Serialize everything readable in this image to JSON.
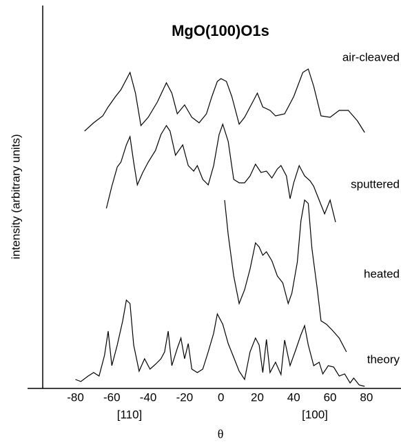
{
  "chart_data": {
    "type": "line",
    "title": "MgO(100)O1s",
    "x_label": "θ",
    "y_label": "intensity (arbitrary units)",
    "annotations": [
      "[110]",
      "[100]"
    ],
    "xlim": [
      -98,
      99
    ],
    "ylim": [
      0,
      111
    ],
    "xticks": [
      -80,
      -60,
      -40,
      -20,
      0,
      20,
      40,
      60,
      80
    ],
    "color": "#000000",
    "series": [
      {
        "name": "air-cleaved",
        "x": [
          -75,
          -70,
          -65,
          -62,
          -58,
          -55,
          -50,
          -47,
          -44,
          -40,
          -35,
          -30,
          -27,
          -24,
          -20,
          -16,
          -12,
          -8,
          -5,
          -2,
          0,
          3,
          6,
          10,
          13,
          17,
          20,
          23,
          27,
          30,
          35,
          40,
          45,
          48,
          51,
          55,
          60,
          65,
          70,
          75,
          79
        ],
        "values": [
          74.6,
          77,
          79,
          81.6,
          84.6,
          86.6,
          91.6,
          85.6,
          76.2,
          78.6,
          83,
          88.6,
          85.6,
          79.6,
          82.2,
          78.6,
          77,
          79.6,
          84.6,
          89,
          89.8,
          89,
          84.6,
          76.6,
          78.6,
          82.6,
          85.6,
          81.6,
          80.6,
          79,
          79.6,
          84.6,
          91.6,
          92.6,
          87.6,
          79,
          78.6,
          80.6,
          80.6,
          77.6,
          74.2
        ]
      },
      {
        "name": "sputtered",
        "x": [
          -63,
          -60,
          -57,
          -55,
          -52,
          -50,
          -48,
          -46,
          -43,
          -40,
          -36,
          -33,
          -30,
          -28,
          -25,
          -21,
          -18,
          -15,
          -13,
          -10,
          -7,
          -4,
          -1,
          1,
          4,
          7,
          10,
          13,
          16,
          19,
          22,
          25,
          28,
          31,
          33,
          36,
          38,
          40,
          43,
          46,
          49,
          51,
          54,
          57,
          60,
          63
        ],
        "values": [
          52.2,
          58.6,
          64.2,
          65.6,
          70.6,
          73,
          65.6,
          59,
          62.6,
          65.6,
          69,
          73.6,
          76.2,
          74.6,
          67.6,
          70.6,
          64.6,
          63,
          64.6,
          60.6,
          59,
          64.6,
          73.6,
          76.6,
          71.6,
          60.6,
          59.6,
          59.6,
          61.6,
          65,
          62.6,
          63,
          61,
          63.6,
          64.6,
          61.6,
          55,
          59.6,
          64.6,
          61.6,
          60.2,
          58.6,
          54.6,
          50.6,
          54.6,
          48.2
        ]
      },
      {
        "name": "heated",
        "x": [
          2,
          4,
          7,
          10,
          13,
          16,
          19,
          21,
          23,
          25,
          28,
          31,
          34,
          37,
          39,
          42,
          44,
          46,
          48,
          50,
          53,
          55,
          58,
          61,
          65,
          69
        ],
        "values": [
          54.6,
          44.6,
          32.6,
          24.6,
          28.6,
          34.6,
          42.2,
          41,
          38.6,
          39.6,
          37,
          32.6,
          30.6,
          24.6,
          27.6,
          36.6,
          48.6,
          54.6,
          53.6,
          40.6,
          28.6,
          19.6,
          18.6,
          17,
          14.6,
          10.6
        ]
      },
      {
        "name": "theory",
        "x": [
          -80,
          -77,
          -73,
          -70,
          -67,
          -64,
          -62,
          -60,
          -57,
          -54,
          -52,
          -50,
          -48,
          -45,
          -42,
          -39,
          -36,
          -33,
          -31,
          -29,
          -27,
          -24,
          -22,
          -20,
          -18,
          -16,
          -13,
          -10,
          -7,
          -4,
          -2,
          1,
          4,
          7,
          10,
          13,
          16,
          19,
          21,
          23,
          25,
          27,
          30,
          33,
          35,
          38,
          41,
          44,
          46,
          48,
          51,
          54,
          56,
          59,
          62,
          65,
          68,
          71,
          73,
          76,
          79
        ],
        "values": [
          2.6,
          2,
          3.6,
          4.6,
          3.6,
          9.6,
          16.6,
          6.6,
          12.6,
          19.6,
          25.6,
          24.6,
          12.6,
          5,
          8.6,
          5.6,
          7,
          8.6,
          10.6,
          16.6,
          6.6,
          11.6,
          14.6,
          8.6,
          13,
          5.6,
          4.6,
          5.6,
          10.6,
          16,
          21.6,
          18.6,
          13,
          9,
          5,
          2.6,
          10.6,
          14.6,
          12.6,
          4.6,
          14.2,
          4.6,
          7.6,
          4,
          14,
          6.6,
          11,
          15.6,
          18.2,
          12.6,
          6.6,
          7.6,
          4.2,
          6.6,
          6.2,
          3.6,
          4.2,
          1.6,
          3,
          1,
          0.6
        ]
      }
    ]
  }
}
